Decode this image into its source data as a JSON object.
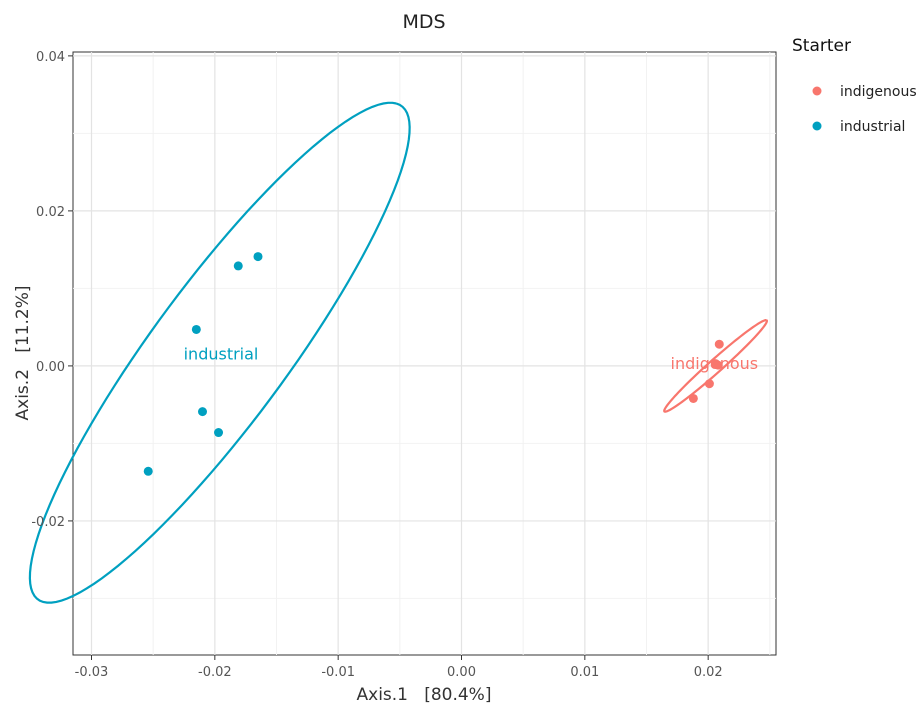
{
  "chart_data": {
    "type": "scatter",
    "title": "MDS",
    "xlabel": "Axis.1   [80.4%]",
    "ylabel": "Axis.2   [11.2%]",
    "xlim": [
      -0.0315,
      0.0255
    ],
    "ylim": [
      -0.0373,
      0.0405
    ],
    "x_ticks": [
      -0.03,
      -0.02,
      -0.01,
      0.0,
      0.01,
      0.02
    ],
    "x_tick_labels": [
      "-0.03",
      "-0.02",
      "-0.01",
      "0.00",
      "0.01",
      "0.02"
    ],
    "y_ticks": [
      -0.02,
      0.0,
      0.02,
      0.04
    ],
    "y_tick_labels": [
      "-0.02",
      "0.00",
      "0.02",
      "0.04"
    ],
    "grid": true,
    "legend": {
      "title": "Starter",
      "placement": "right"
    },
    "series": [
      {
        "name": "indigenous",
        "color": "#F8766D",
        "points": [
          {
            "x": 0.0188,
            "y": -0.0042
          },
          {
            "x": 0.0201,
            "y": -0.0023
          },
          {
            "x": 0.0206,
            "y": 0.0003
          },
          {
            "x": 0.0208,
            "y": 0.0001
          },
          {
            "x": 0.0209,
            "y": 0.0028
          }
        ],
        "label": "indigenous",
        "label_pos": {
          "x": 0.0205,
          "y": -0.0004
        },
        "ellipse": {
          "cx": 0.0206,
          "cy": 0.0,
          "major": 0.0072,
          "minor": 0.00065,
          "angle_deg": 55
        }
      },
      {
        "name": "industrial",
        "color": "#00A0C0",
        "points": [
          {
            "x": -0.0254,
            "y": -0.0136
          },
          {
            "x": -0.021,
            "y": -0.0059
          },
          {
            "x": -0.0197,
            "y": -0.0086
          },
          {
            "x": -0.0215,
            "y": 0.0047
          },
          {
            "x": -0.0181,
            "y": 0.0129
          },
          {
            "x": -0.0165,
            "y": 0.0141
          }
        ],
        "label": "industrial",
        "label_pos": {
          "x": -0.0195,
          "y": 0.0008
        },
        "ellipse": {
          "cx": -0.0196,
          "cy": 0.0017,
          "major": 0.0352,
          "minor": 0.0062,
          "angle_deg": 66
        }
      }
    ]
  }
}
